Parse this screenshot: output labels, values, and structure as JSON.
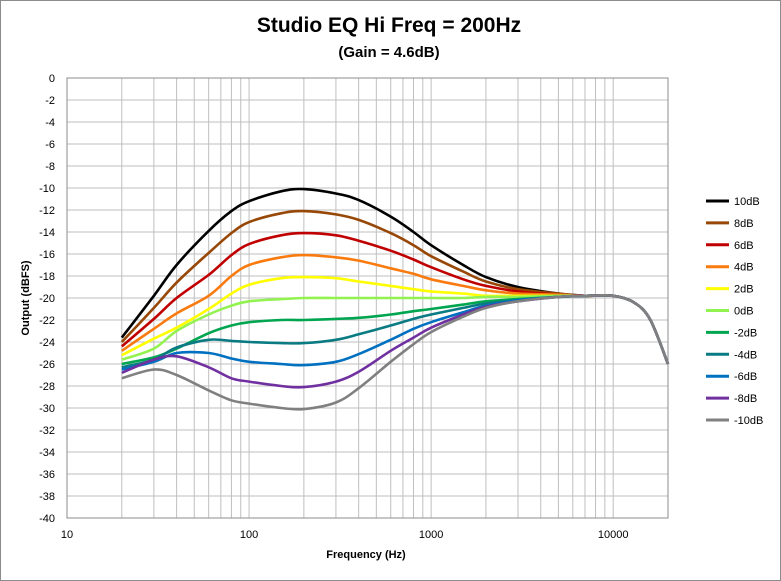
{
  "chart_data": {
    "type": "line",
    "title": "Studio EQ Hi Freq = 200Hz",
    "subtitle": "(Gain = 4.6dB)",
    "xlabel": "Frequency (Hz)",
    "ylabel": "Output (dBFS)",
    "x_scale": "log",
    "xlim": [
      10,
      20000
    ],
    "ylim": [
      -40,
      0
    ],
    "x_ticks": [
      "10",
      "100",
      "1000",
      "10000"
    ],
    "y_ticks": [
      "0",
      "-2",
      "-4",
      "-6",
      "-8",
      "-10",
      "-12",
      "-14",
      "-16",
      "-18",
      "-20",
      "-22",
      "-24",
      "-26",
      "-28",
      "-30",
      "-32",
      "-34",
      "-36",
      "-38",
      "-40"
    ],
    "grid": true,
    "legend_position": "right",
    "x": [
      20,
      30,
      40,
      60,
      80,
      100,
      150,
      200,
      300,
      400,
      600,
      800,
      1000,
      1500,
      2000,
      3000,
      5000,
      7000,
      10000,
      13000,
      16000,
      20000
    ],
    "series": [
      {
        "name": "10dB",
        "color": "#000000",
        "values": [
          -23.6,
          -19.8,
          -17.0,
          -13.9,
          -12.1,
          -11.2,
          -10.3,
          -10.1,
          -10.5,
          -11.1,
          -12.6,
          -14.0,
          -15.2,
          -17.0,
          -18.1,
          -19.0,
          -19.6,
          -19.8,
          -19.8,
          -20.4,
          -22.0,
          -26.0
        ]
      },
      {
        "name": "8dB",
        "color": "#974706",
        "values": [
          -24.0,
          -20.9,
          -18.6,
          -15.9,
          -14.1,
          -13.1,
          -12.3,
          -12.1,
          -12.4,
          -12.9,
          -14.1,
          -15.2,
          -16.2,
          -17.6,
          -18.5,
          -19.2,
          -19.6,
          -19.8,
          -19.8,
          -20.4,
          -22.0,
          -26.0
        ]
      },
      {
        "name": "6dB",
        "color": "#c00000",
        "values": [
          -24.4,
          -21.9,
          -20.0,
          -17.9,
          -16.1,
          -15.1,
          -14.3,
          -14.1,
          -14.3,
          -14.8,
          -15.7,
          -16.5,
          -17.2,
          -18.3,
          -18.9,
          -19.4,
          -19.7,
          -19.8,
          -19.8,
          -20.4,
          -22.0,
          -26.0
        ]
      },
      {
        "name": "4dB",
        "color": "#f97b10",
        "values": [
          -24.8,
          -22.8,
          -21.4,
          -19.8,
          -18.0,
          -17.0,
          -16.3,
          -16.1,
          -16.3,
          -16.6,
          -17.3,
          -17.8,
          -18.3,
          -18.9,
          -19.3,
          -19.6,
          -19.7,
          -19.8,
          -19.8,
          -20.4,
          -22.0,
          -26.0
        ]
      },
      {
        "name": "2dB",
        "color": "#ffff00",
        "values": [
          -25.2,
          -23.7,
          -22.7,
          -21.0,
          -19.6,
          -18.8,
          -18.2,
          -18.1,
          -18.2,
          -18.5,
          -18.9,
          -19.2,
          -19.4,
          -19.6,
          -19.8,
          -19.8,
          -19.8,
          -19.8,
          -19.8,
          -20.4,
          -22.0,
          -26.0
        ]
      },
      {
        "name": "0dB",
        "color": "#92f24f",
        "values": [
          -25.6,
          -24.6,
          -23.0,
          -21.5,
          -20.7,
          -20.3,
          -20.1,
          -20.0,
          -20.0,
          -20.0,
          -20.0,
          -20.0,
          -20.0,
          -20.0,
          -19.9,
          -19.9,
          -19.8,
          -19.8,
          -19.8,
          -20.4,
          -22.0,
          -26.0
        ]
      },
      {
        "name": "-2dB",
        "color": "#00a550",
        "values": [
          -26.0,
          -25.4,
          -24.6,
          -23.2,
          -22.5,
          -22.2,
          -22.0,
          -22.0,
          -21.9,
          -21.8,
          -21.5,
          -21.2,
          -21.0,
          -20.6,
          -20.3,
          -20.1,
          -19.9,
          -19.8,
          -19.8,
          -20.4,
          -22.0,
          -26.0
        ]
      },
      {
        "name": "-4dB",
        "color": "#0a7b83",
        "values": [
          -26.3,
          -25.6,
          -24.5,
          -23.8,
          -23.9,
          -24.0,
          -24.1,
          -24.1,
          -23.8,
          -23.3,
          -22.5,
          -21.9,
          -21.5,
          -20.9,
          -20.5,
          -20.2,
          -19.9,
          -19.8,
          -19.8,
          -20.4,
          -22.0,
          -26.0
        ]
      },
      {
        "name": "-6dB",
        "color": "#0070c0",
        "values": [
          -26.5,
          -25.8,
          -25.0,
          -25.0,
          -25.5,
          -25.8,
          -26.0,
          -26.1,
          -25.8,
          -25.1,
          -23.8,
          -22.8,
          -22.2,
          -21.3,
          -20.7,
          -20.2,
          -19.9,
          -19.8,
          -19.8,
          -20.4,
          -22.0,
          -26.0
        ]
      },
      {
        "name": "-8dB",
        "color": "#7030a0",
        "values": [
          -26.8,
          -25.6,
          -25.3,
          -26.3,
          -27.3,
          -27.6,
          -28.0,
          -28.1,
          -27.6,
          -26.7,
          -24.8,
          -23.6,
          -22.7,
          -21.5,
          -20.8,
          -20.3,
          -19.9,
          -19.8,
          -19.8,
          -20.4,
          -22.0,
          -26.0
        ]
      },
      {
        "name": "-10dB",
        "color": "#808080",
        "values": [
          -27.3,
          -26.5,
          -27.0,
          -28.4,
          -29.3,
          -29.6,
          -30.0,
          -30.1,
          -29.5,
          -28.2,
          -25.8,
          -24.2,
          -23.1,
          -21.7,
          -20.9,
          -20.3,
          -19.9,
          -19.8,
          -19.8,
          -20.4,
          -22.0,
          -26.0
        ]
      }
    ]
  }
}
